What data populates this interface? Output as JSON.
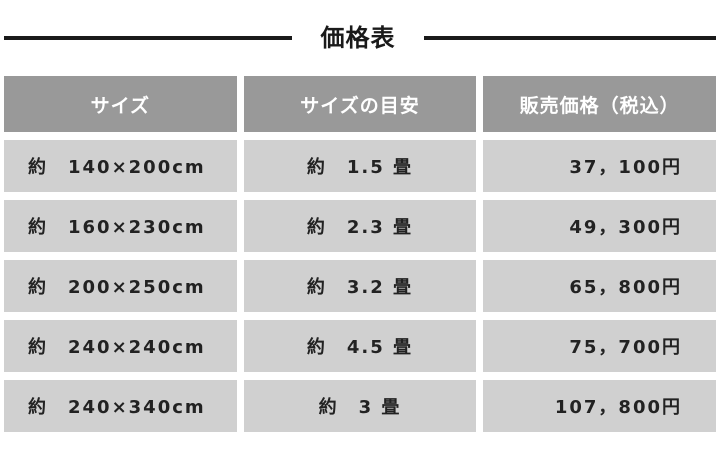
{
  "title": "価格表",
  "headers": [
    "サイズ",
    "サイズの目安",
    "販売価格（税込）"
  ],
  "rows": [
    {
      "size": "約　140×200cm",
      "tatami": "約　1.5 畳",
      "price": "37，100円"
    },
    {
      "size": "約　160×230cm",
      "tatami": "約　2.3 畳",
      "price": "49，300円"
    },
    {
      "size": "約　200×250cm",
      "tatami": "約　3.2 畳",
      "price": "65，800円"
    },
    {
      "size": "約　240×240cm",
      "tatami": "約　4.5 畳",
      "price": "75，700円"
    },
    {
      "size": "約　240×340cm",
      "tatami": "約　3 畳",
      "price": "107，800円"
    }
  ],
  "colors": {
    "header_bg": "#999999",
    "cell_bg": "#d0d0d0",
    "rule": "#1a1a1a"
  }
}
